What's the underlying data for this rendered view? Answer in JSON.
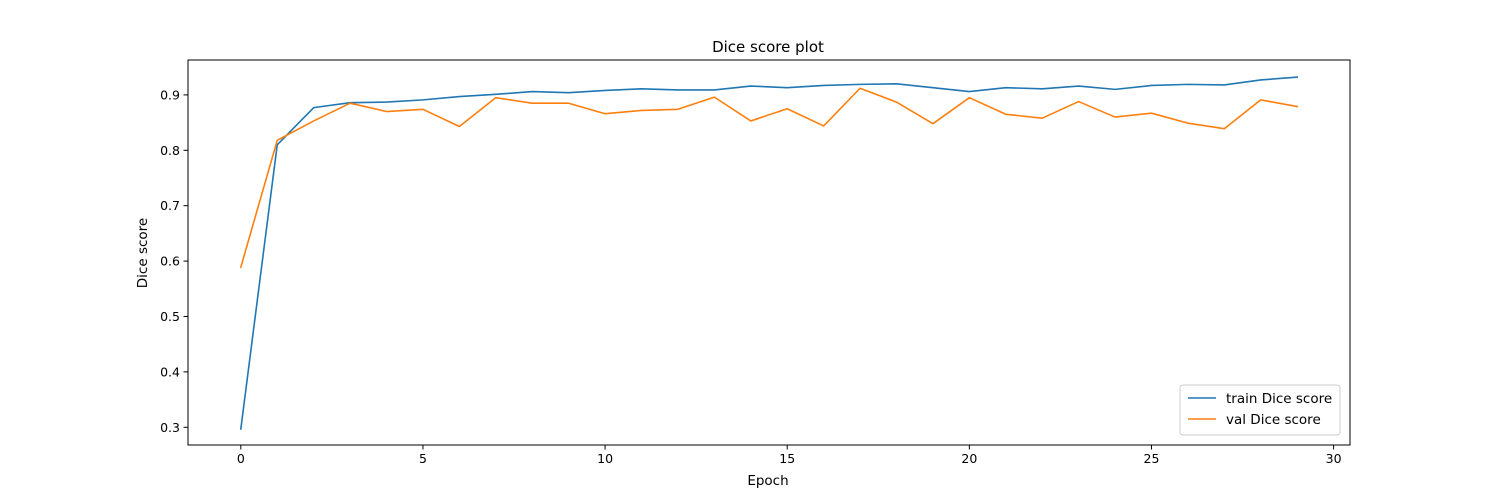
{
  "chart_data": {
    "type": "line",
    "title": "Dice score plot",
    "xlabel": "Epoch",
    "ylabel": "Dice score",
    "xlim": [
      -1.45,
      30.45
    ],
    "ylim": [
      0.268,
      0.963
    ],
    "xticks": [
      0,
      5,
      10,
      15,
      20,
      25,
      30
    ],
    "yticks": [
      0.3,
      0.4,
      0.5,
      0.6,
      0.7,
      0.8,
      0.9
    ],
    "ytick_labels": [
      "0.3",
      "0.4",
      "0.5",
      "0.6",
      "0.7",
      "0.8",
      "0.9"
    ],
    "grid": false,
    "legend_position": "lower-right",
    "x": [
      0,
      1,
      2,
      3,
      4,
      5,
      6,
      7,
      8,
      9,
      10,
      11,
      12,
      13,
      14,
      15,
      16,
      17,
      18,
      19,
      20,
      21,
      22,
      23,
      24,
      25,
      26,
      27,
      28,
      29
    ],
    "series": [
      {
        "name": "train Dice score",
        "color": "#1f77b4",
        "values": [
          0.297,
          0.81,
          0.877,
          0.886,
          0.887,
          0.891,
          0.897,
          0.901,
          0.906,
          0.904,
          0.908,
          0.911,
          0.909,
          0.909,
          0.916,
          0.913,
          0.917,
          0.919,
          0.92,
          0.913,
          0.906,
          0.913,
          0.911,
          0.916,
          0.91,
          0.917,
          0.919,
          0.918,
          0.927,
          0.932
        ]
      },
      {
        "name": "val Dice score",
        "color": "#ff7f0e",
        "values": [
          0.589,
          0.818,
          0.853,
          0.885,
          0.87,
          0.874,
          0.843,
          0.895,
          0.885,
          0.885,
          0.866,
          0.872,
          0.874,
          0.896,
          0.853,
          0.875,
          0.844,
          0.912,
          0.887,
          0.848,
          0.895,
          0.865,
          0.858,
          0.888,
          0.86,
          0.867,
          0.849,
          0.839,
          0.891,
          0.879
        ]
      }
    ]
  }
}
